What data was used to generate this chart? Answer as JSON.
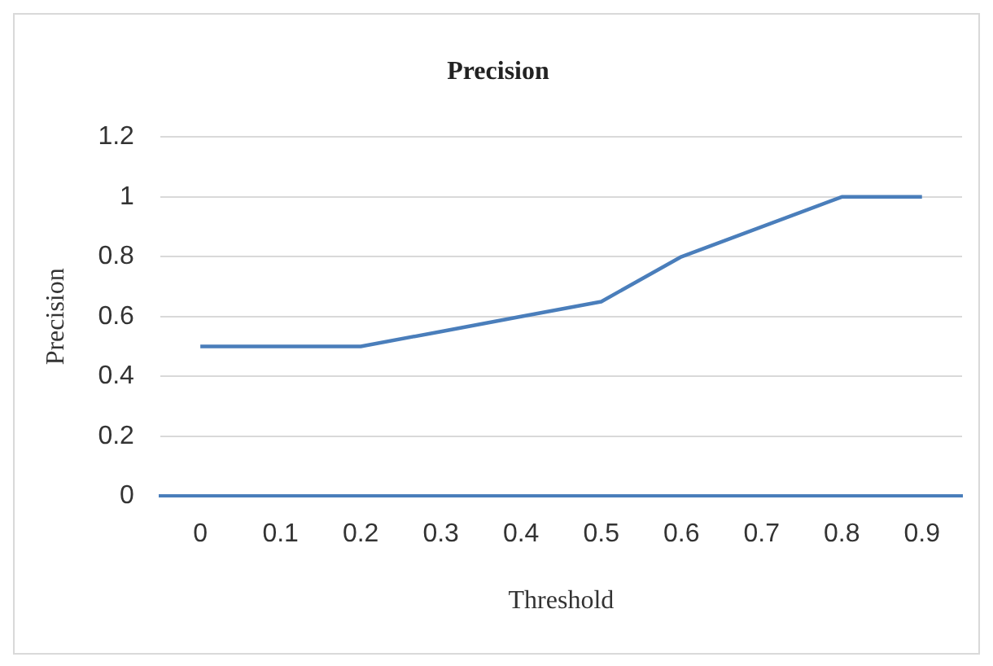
{
  "chart_data": {
    "type": "line",
    "title": "Precision",
    "xlabel": "Threshold",
    "ylabel": "Precision",
    "categories": [
      "0",
      "0.1",
      "0.2",
      "0.3",
      "0.4",
      "0.5",
      "0.6",
      "0.7",
      "0.8",
      "0.9"
    ],
    "series": [
      {
        "color": "#4a7ebb",
        "values": [
          0.5,
          0.5,
          0.5,
          0.55,
          0.6,
          0.65,
          0.8,
          0.9,
          1,
          1
        ]
      }
    ],
    "ylim": [
      0,
      1.2
    ],
    "yticks": [
      0,
      0.2,
      0.4,
      0.6,
      0.8,
      1,
      1.2
    ],
    "grid": "y",
    "legend": false,
    "marker": "none",
    "line_style": "solid"
  }
}
